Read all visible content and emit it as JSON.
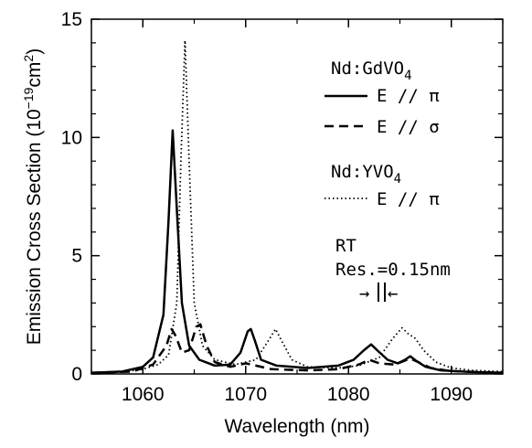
{
  "chart_data": {
    "type": "line",
    "xlabel": "Wavelength (nm)",
    "ylabel_main": "Emission Cross Section (10",
    "ylabel_exp": "−19",
    "ylabel_unit": "cm",
    "ylabel_unit_exp": "2",
    "ylabel_close": ")",
    "xlim": [
      1055,
      1095
    ],
    "ylim": [
      0,
      15
    ],
    "x_ticks": [
      1060,
      1070,
      1080,
      1090
    ],
    "y_ticks": [
      0,
      5,
      10,
      15
    ],
    "legend": [
      {
        "type": "header",
        "base": "Nd:GdVO",
        "sub": "4"
      },
      {
        "type": "entry",
        "series": 0,
        "label": "E // π"
      },
      {
        "type": "entry",
        "series": 1,
        "label": "E // σ"
      },
      {
        "type": "header",
        "base": "Nd:YVO",
        "sub": "4"
      },
      {
        "type": "entry",
        "series": 2,
        "label": "E // π"
      }
    ],
    "annotations": {
      "line1": "RT",
      "line2": "Res.=0.15nm",
      "arrow_left": "→",
      "arrow_right": "←"
    },
    "series": [
      {
        "style": "solid",
        "points": [
          [
            1055,
            0.05
          ],
          [
            1058,
            0.1
          ],
          [
            1060,
            0.3
          ],
          [
            1061,
            0.7
          ],
          [
            1062,
            2.5
          ],
          [
            1062.5,
            6.5
          ],
          [
            1062.9,
            10.3
          ],
          [
            1063.3,
            7.0
          ],
          [
            1063.8,
            3.0
          ],
          [
            1064.5,
            1.2
          ],
          [
            1065.5,
            0.6
          ],
          [
            1067,
            0.35
          ],
          [
            1068.5,
            0.4
          ],
          [
            1069.5,
            0.9
          ],
          [
            1070.2,
            1.8
          ],
          [
            1070.5,
            1.9
          ],
          [
            1070.9,
            1.4
          ],
          [
            1071.5,
            0.6
          ],
          [
            1073,
            0.35
          ],
          [
            1076,
            0.25
          ],
          [
            1079,
            0.35
          ],
          [
            1080.5,
            0.6
          ],
          [
            1081.5,
            1.0
          ],
          [
            1082.2,
            1.25
          ],
          [
            1082.8,
            1.0
          ],
          [
            1083.8,
            0.6
          ],
          [
            1084.8,
            0.45
          ],
          [
            1085.5,
            0.6
          ],
          [
            1086,
            0.75
          ],
          [
            1086.6,
            0.55
          ],
          [
            1087.5,
            0.3
          ],
          [
            1089,
            0.15
          ],
          [
            1092,
            0.08
          ],
          [
            1095,
            0.05
          ]
        ]
      },
      {
        "style": "dashed",
        "points": [
          [
            1055,
            0.05
          ],
          [
            1059,
            0.1
          ],
          [
            1061,
            0.4
          ],
          [
            1062.3,
            1.2
          ],
          [
            1062.8,
            1.9
          ],
          [
            1063.2,
            1.6
          ],
          [
            1063.8,
            0.9
          ],
          [
            1064.5,
            1.0
          ],
          [
            1065.2,
            2.0
          ],
          [
            1065.6,
            2.1
          ],
          [
            1066.2,
            1.2
          ],
          [
            1067,
            0.5
          ],
          [
            1068.5,
            0.3
          ],
          [
            1070,
            0.45
          ],
          [
            1071,
            0.35
          ],
          [
            1072.5,
            0.2
          ],
          [
            1076,
            0.15
          ],
          [
            1079,
            0.2
          ],
          [
            1081,
            0.4
          ],
          [
            1082,
            0.6
          ],
          [
            1083,
            0.45
          ],
          [
            1084.5,
            0.4
          ],
          [
            1086,
            0.65
          ],
          [
            1086.8,
            0.5
          ],
          [
            1088,
            0.25
          ],
          [
            1090,
            0.12
          ],
          [
            1095,
            0.05
          ]
        ]
      },
      {
        "style": "dotted",
        "points": [
          [
            1055,
            0.05
          ],
          [
            1058,
            0.08
          ],
          [
            1060,
            0.2
          ],
          [
            1061.5,
            0.4
          ],
          [
            1062.5,
            0.8
          ],
          [
            1063.3,
            3.0
          ],
          [
            1063.7,
            9.0
          ],
          [
            1064.1,
            14.1
          ],
          [
            1064.5,
            9.0
          ],
          [
            1065,
            3.0
          ],
          [
            1065.8,
            1.2
          ],
          [
            1067,
            0.6
          ],
          [
            1069,
            0.4
          ],
          [
            1071,
            0.6
          ],
          [
            1072.2,
            1.4
          ],
          [
            1072.9,
            1.9
          ],
          [
            1073.5,
            1.4
          ],
          [
            1074.5,
            0.6
          ],
          [
            1076,
            0.3
          ],
          [
            1079,
            0.25
          ],
          [
            1081,
            0.35
          ],
          [
            1083,
            0.7
          ],
          [
            1084.3,
            1.5
          ],
          [
            1085.2,
            1.95
          ],
          [
            1085.8,
            1.7
          ],
          [
            1086.5,
            1.5
          ],
          [
            1087.3,
            1.0
          ],
          [
            1088.5,
            0.5
          ],
          [
            1090,
            0.25
          ],
          [
            1092,
            0.15
          ],
          [
            1095,
            0.1
          ]
        ]
      }
    ]
  }
}
